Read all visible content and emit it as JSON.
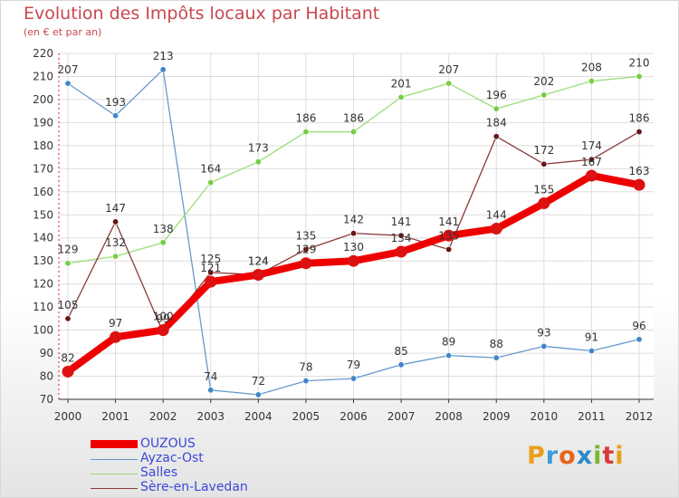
{
  "chart_data": {
    "type": "line",
    "title": "Evolution des Impôts locaux par Habitant",
    "subtitle": "(en € et par an)",
    "categories": [
      "2000",
      "2001",
      "2002",
      "2003",
      "2004",
      "2005",
      "2006",
      "2007",
      "2008",
      "2009",
      "2010",
      "2011",
      "2012"
    ],
    "ylim": [
      70,
      220
    ],
    "yticks": [
      70,
      80,
      90,
      100,
      110,
      120,
      130,
      140,
      150,
      160,
      170,
      180,
      190,
      200,
      210,
      220
    ],
    "series": [
      {
        "name": "OUZOUS",
        "color": "#ee0000",
        "marker": "#dd1111",
        "values": [
          82,
          97,
          100,
          121,
          124,
          129,
          130,
          134,
          141,
          144,
          155,
          167,
          163
        ]
      },
      {
        "name": "Ayzac-Ost",
        "color": "#6699cc",
        "marker": "#3f87c9",
        "values": [
          207,
          193,
          213,
          74,
          72,
          78,
          79,
          85,
          89,
          88,
          93,
          91,
          96
        ]
      },
      {
        "name": "Salles",
        "color": "#99dd77",
        "marker": "#77cc44",
        "values": [
          129,
          132,
          138,
          164,
          173,
          186,
          186,
          201,
          207,
          196,
          202,
          208,
          210
        ]
      },
      {
        "name": "Sère-en-Lavedan",
        "color": "#8b3a3a",
        "marker": "#6a1414",
        "values": [
          105,
          147,
          99,
          125,
          124,
          135,
          142,
          141,
          135,
          184,
          172,
          174,
          186
        ]
      }
    ]
  },
  "legend": {
    "items": [
      "OUZOUS",
      "Ayzac-Ost",
      "Salles",
      "Sère-en-Lavedan"
    ]
  },
  "logo": {
    "letters": [
      "P",
      "r",
      "o",
      "x",
      "i",
      "t",
      "i"
    ],
    "colors": [
      "#e8a01a",
      "#3c9ad6",
      "#e8641a",
      "#2a88c8",
      "#7ab82e",
      "#d83a3a",
      "#e8a01a"
    ]
  }
}
